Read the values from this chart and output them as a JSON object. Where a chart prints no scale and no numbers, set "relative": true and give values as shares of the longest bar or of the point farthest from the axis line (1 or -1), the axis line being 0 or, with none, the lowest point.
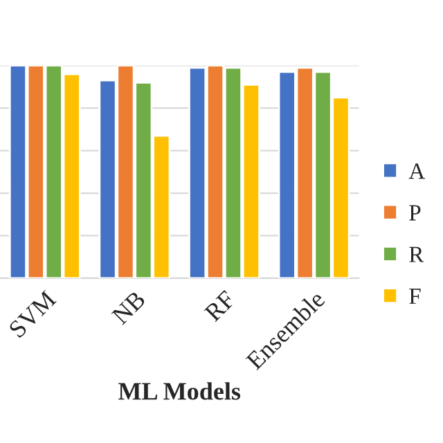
{
  "chart_data": {
    "type": "bar",
    "xlabel": "ML Models",
    "categories": [
      "SVM",
      "NB",
      "RF",
      "Ensemble"
    ],
    "relative": true,
    "grid": "y",
    "legend": "right",
    "series": [
      {
        "name": "A",
        "color": "#4472c4",
        "values": [
          1.0,
          0.93,
          0.99,
          0.97
        ]
      },
      {
        "name": "P",
        "color": "#ed7d31",
        "values": [
          1.0,
          1.0,
          1.0,
          0.99
        ]
      },
      {
        "name": "R",
        "color": "#70ad47",
        "values": [
          1.0,
          0.92,
          0.99,
          0.97
        ]
      },
      {
        "name": "F",
        "color": "#ffc000",
        "values": [
          0.96,
          0.67,
          0.91,
          0.85
        ]
      }
    ]
  }
}
